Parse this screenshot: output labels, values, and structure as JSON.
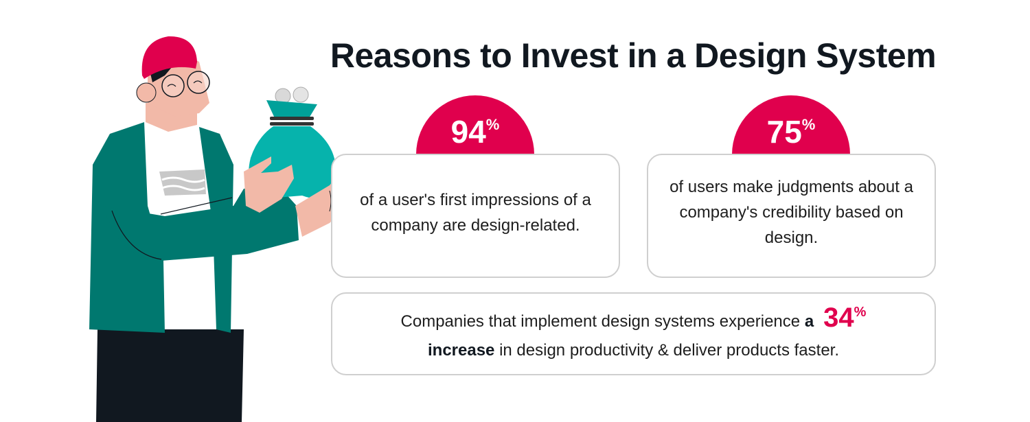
{
  "title": "Reasons to Invest in a Design System",
  "colors": {
    "accent": "#e0004d",
    "jacket": "#00786f",
    "bag": "#06b3ac",
    "card_border": "#cfcfcf",
    "title": "#111820"
  },
  "illustration": {
    "icon": "man-holding-money-bag"
  },
  "stats": [
    {
      "value": "94",
      "unit": "%",
      "text": "of a user's first impressions of a company are design-related."
    },
    {
      "value": "75",
      "unit": "%",
      "text": "of users make judgments about a company's credibility based on design."
    }
  ],
  "footer_stat": {
    "text_before": "Companies that implement design systems experience",
    "bold_a": "a",
    "value": "34",
    "unit": "%",
    "bold_increase": "increase",
    "text_after": "in design productivity & deliver products faster."
  }
}
